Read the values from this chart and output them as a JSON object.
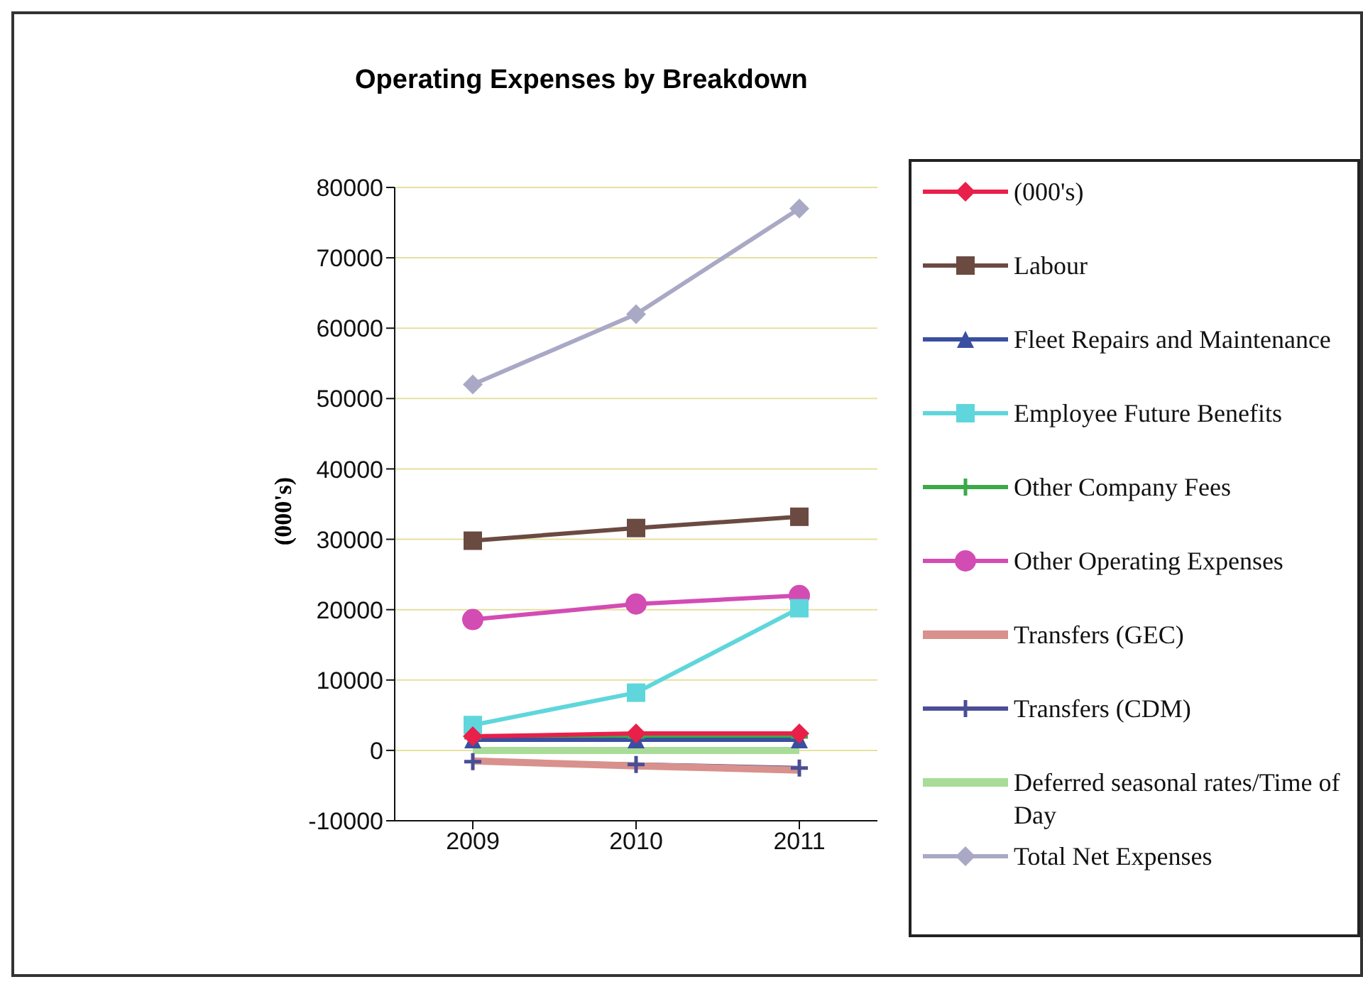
{
  "chart_data": {
    "type": "line",
    "title": "Operating Expenses by Breakdown",
    "ylabel": "(000's)",
    "categories": [
      "2009",
      "2010",
      "2011"
    ],
    "ylim": [
      -10000,
      80000
    ],
    "yticks": [
      -10000,
      0,
      10000,
      20000,
      30000,
      40000,
      50000,
      60000,
      70000,
      80000
    ],
    "grid": "y",
    "legend": "right",
    "series": [
      {
        "name": "(000's)",
        "color": "#e8204a",
        "marker": "diamond",
        "values": [
          2000,
          2400,
          2400
        ]
      },
      {
        "name": "Labour",
        "color": "#6b4a42",
        "marker": "square",
        "values": [
          29800,
          31600,
          33200
        ]
      },
      {
        "name": "Fleet Repairs and Maintenance",
        "color": "#3a4fa0",
        "marker": "triangle",
        "values": [
          1500,
          1500,
          1500
        ]
      },
      {
        "name": "Employee Future Benefits",
        "color": "#5fd6dc",
        "marker": "square",
        "values": [
          3600,
          8200,
          20200
        ]
      },
      {
        "name": "Other Company Fees",
        "color": "#3aaa4a",
        "marker": "cross",
        "values": [
          1800,
          1900,
          1900
        ]
      },
      {
        "name": "Other Operating Expenses",
        "color": "#d34cb4",
        "marker": "circle",
        "values": [
          18600,
          20800,
          22000
        ]
      },
      {
        "name": "Transfers (GEC)",
        "color": "#d8918c",
        "marker": "none",
        "values": [
          -1500,
          -2200,
          -2800
        ]
      },
      {
        "name": "Transfers (CDM)",
        "color": "#4a4e96",
        "marker": "cross",
        "values": [
          -1600,
          -2000,
          -2500
        ]
      },
      {
        "name": "Deferred seasonal rates/Time of Day",
        "color": "#a8dc98",
        "marker": "none",
        "values": [
          0,
          0,
          0
        ]
      },
      {
        "name": "Total Net Expenses",
        "color": "#a9a9c6",
        "marker": "diamond",
        "values": [
          52000,
          62000,
          77000
        ]
      }
    ]
  }
}
